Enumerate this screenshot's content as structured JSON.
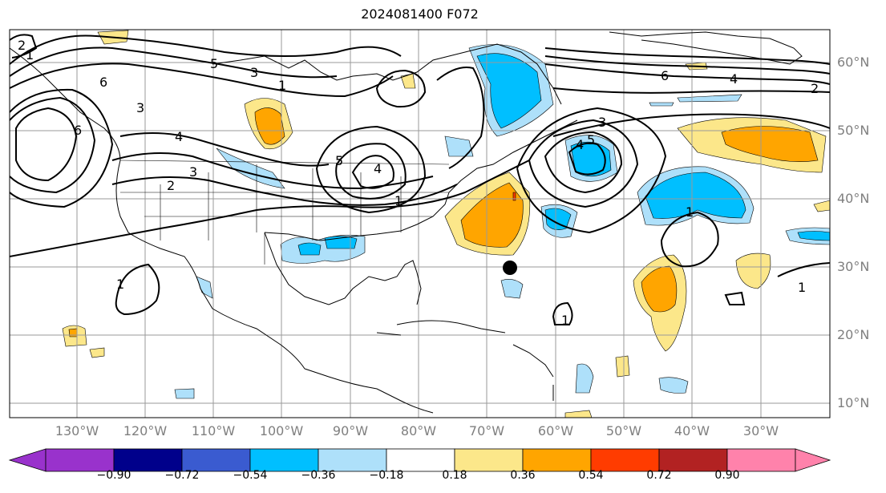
{
  "title": "2024081400 F072",
  "lat_labels": [
    "60°N",
    "50°N",
    "40°N",
    "30°N",
    "20°N",
    "10°N"
  ],
  "lon_labels": [
    "130°W",
    "120°W",
    "110°W",
    "100°W",
    "90°W",
    "80°W",
    "70°W",
    "60°W",
    "50°W",
    "40°W",
    "30°W"
  ],
  "contour_labels": [
    "2",
    "1",
    "6",
    "5",
    "3",
    "1",
    "4",
    "3",
    "2",
    "6",
    "4",
    "2",
    "5",
    "4",
    "4",
    "3",
    "1",
    "5",
    "6",
    "3",
    "1",
    "1",
    "1",
    "1"
  ],
  "colorbar": {
    "tick_labels": [
      "−0.90",
      "−0.72",
      "−0.54",
      "−0.36",
      "−0.18",
      "0.18",
      "0.36",
      "0.54",
      "0.72",
      "0.90"
    ],
    "colors": [
      "#9932cc",
      "#00008b",
      "#3a5bd0",
      "#00bfff",
      "#aee0fa",
      "#ffffff",
      "#fce78a",
      "#ffa500",
      "#ff3c00",
      "#b22222",
      "#ff82ab"
    ]
  },
  "marker": {
    "type": "storm-position-dot",
    "color": "#000000"
  }
}
